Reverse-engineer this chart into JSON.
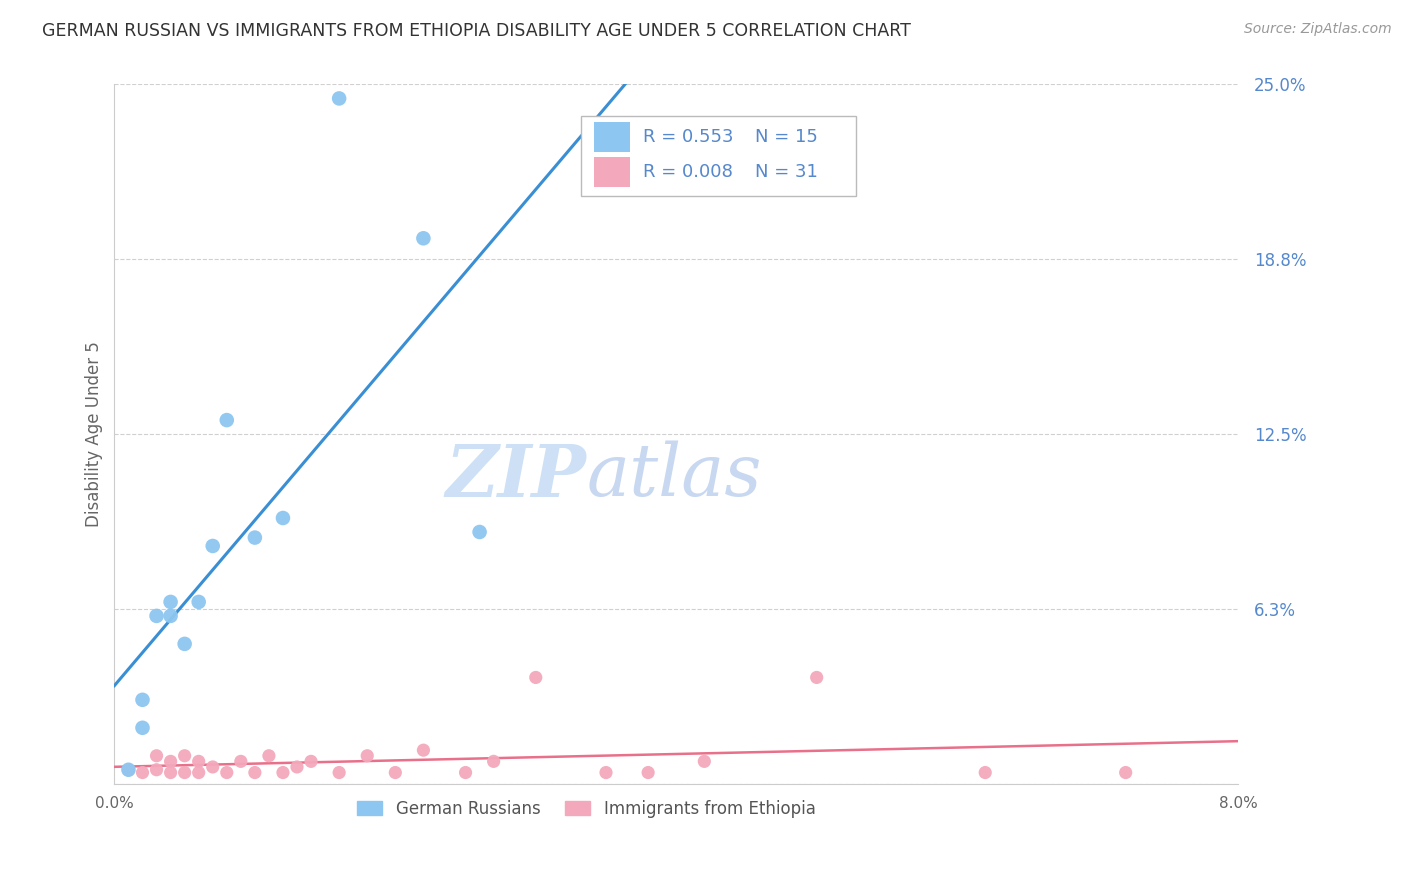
{
  "title": "GERMAN RUSSIAN VS IMMIGRANTS FROM ETHIOPIA DISABILITY AGE UNDER 5 CORRELATION CHART",
  "source": "Source: ZipAtlas.com",
  "ylabel": "Disability Age Under 5",
  "xlim": [
    0.0,
    0.08
  ],
  "ylim": [
    0.0,
    0.25
  ],
  "yticks": [
    0.0,
    0.0625,
    0.125,
    0.1875,
    0.25
  ],
  "ytick_labels": [
    "",
    "6.3%",
    "12.5%",
    "18.8%",
    "25.0%"
  ],
  "xticks": [
    0.0,
    0.02,
    0.04,
    0.06,
    0.08
  ],
  "xtick_labels": [
    "0.0%",
    "",
    "",
    "",
    "8.0%"
  ],
  "blue_label": "German Russians",
  "pink_label": "Immigrants from Ethiopia",
  "blue_R": "0.553",
  "blue_N": "15",
  "pink_R": "0.008",
  "pink_N": "31",
  "blue_color": "#8dc6f0",
  "pink_color": "#f4a8bc",
  "blue_line_color": "#3a8fd4",
  "pink_line_color": "#e8708a",
  "dashed_line_color": "#c0c0c0",
  "background_color": "#ffffff",
  "grid_color": "#d0d0d0",
  "watermark_zip_color": "#cde0f5",
  "watermark_atlas_color": "#c8d8f0",
  "title_color": "#333333",
  "source_color": "#999999",
  "ytick_color": "#5588cc",
  "xtick_color": "#666666",
  "ylabel_color": "#666666",
  "blue_x": [
    0.001,
    0.002,
    0.002,
    0.003,
    0.004,
    0.004,
    0.005,
    0.006,
    0.007,
    0.008,
    0.01,
    0.012,
    0.016,
    0.022,
    0.026
  ],
  "blue_y": [
    0.005,
    0.02,
    0.03,
    0.06,
    0.06,
    0.065,
    0.05,
    0.065,
    0.085,
    0.13,
    0.088,
    0.095,
    0.245,
    0.195,
    0.09
  ],
  "pink_x": [
    0.001,
    0.002,
    0.003,
    0.003,
    0.004,
    0.004,
    0.005,
    0.005,
    0.006,
    0.006,
    0.007,
    0.008,
    0.009,
    0.01,
    0.011,
    0.012,
    0.013,
    0.014,
    0.016,
    0.018,
    0.02,
    0.022,
    0.025,
    0.027,
    0.03,
    0.035,
    0.038,
    0.042,
    0.05,
    0.062,
    0.072
  ],
  "pink_y": [
    0.005,
    0.004,
    0.005,
    0.01,
    0.004,
    0.008,
    0.004,
    0.01,
    0.004,
    0.008,
    0.006,
    0.004,
    0.008,
    0.004,
    0.01,
    0.004,
    0.006,
    0.008,
    0.004,
    0.01,
    0.004,
    0.012,
    0.004,
    0.008,
    0.038,
    0.004,
    0.004,
    0.008,
    0.038,
    0.004,
    0.004
  ]
}
